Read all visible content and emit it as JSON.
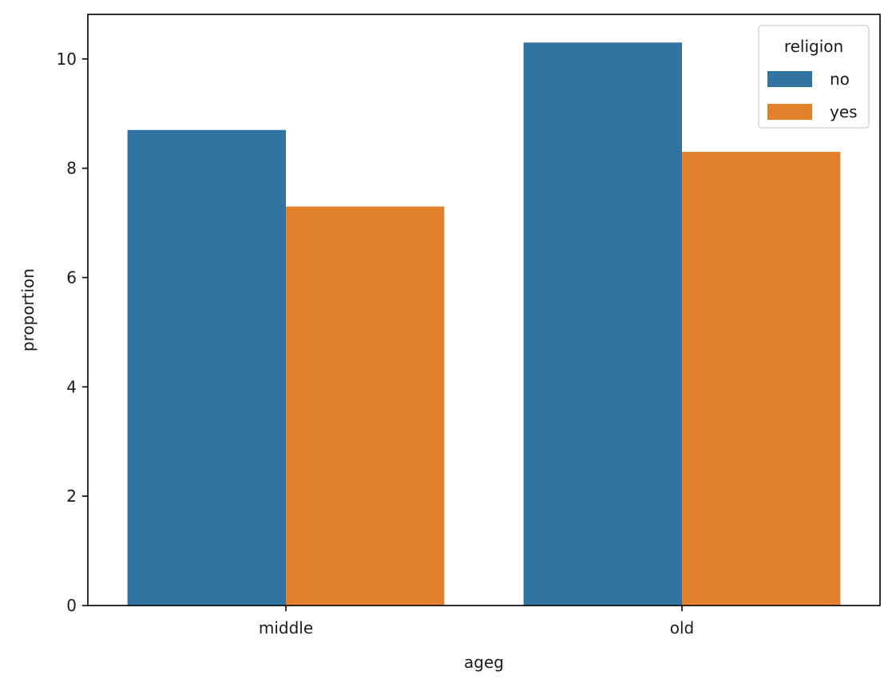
{
  "chart_data": {
    "type": "bar",
    "xlabel": "ageg",
    "ylabel": "proportion",
    "categories": [
      "middle",
      "old"
    ],
    "series": [
      {
        "name": "no",
        "values": [
          8.7,
          10.3
        ],
        "color": "#3274a1"
      },
      {
        "name": "yes",
        "values": [
          7.3,
          8.3
        ],
        "color": "#e1812c"
      }
    ],
    "ylim": [
      0,
      10.815
    ],
    "yticks": [
      0,
      2,
      4,
      6,
      8,
      10
    ],
    "grid": false,
    "legend": {
      "title": "religion",
      "placement": "top-right"
    }
  }
}
